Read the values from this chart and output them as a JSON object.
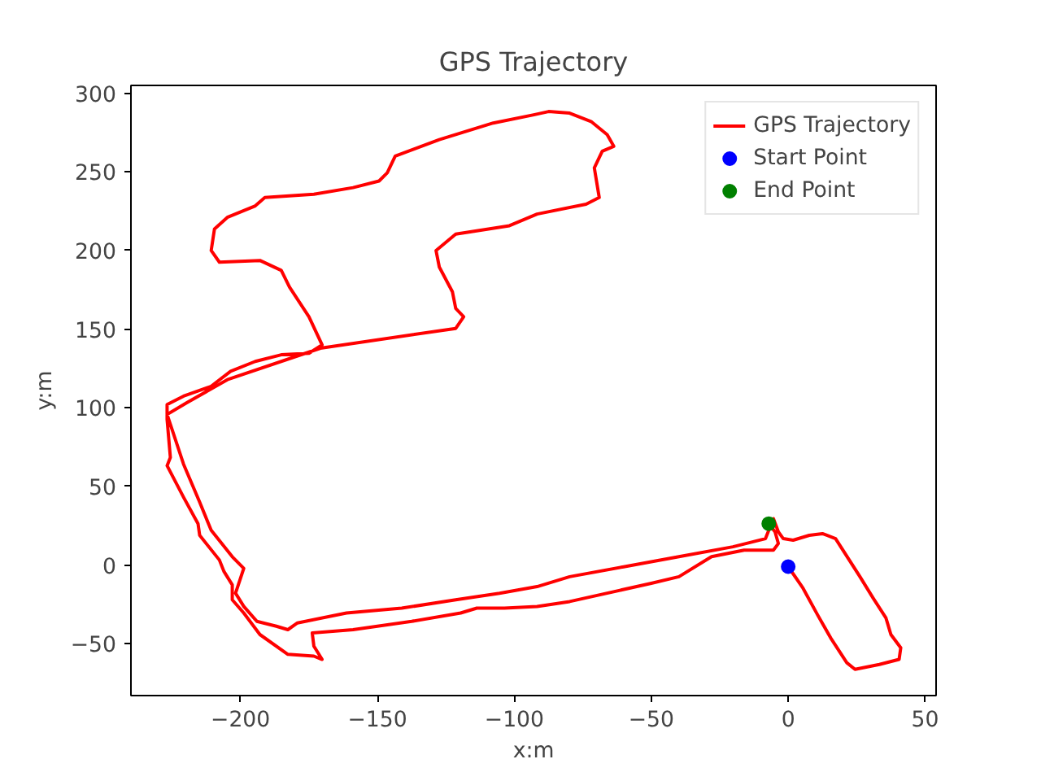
{
  "chart_data": {
    "type": "line",
    "title": "GPS Trajectory",
    "xlabel": "x:m",
    "ylabel": "y:m",
    "xlim": [
      -240,
      54
    ],
    "ylim": [
      -83,
      305
    ],
    "xticks": [
      -200,
      -150,
      -100,
      -50,
      0,
      50
    ],
    "yticks": [
      -50,
      0,
      50,
      100,
      150,
      200,
      250,
      300
    ],
    "grid": false,
    "legend": "top right",
    "series": [
      {
        "name": "GPS Trajectory",
        "color": "#ff0000",
        "marker": "none",
        "x": [
          0,
          5.4,
          10.7,
          15.5,
          21.4,
          24.4,
          33.3,
          40.5,
          41.1,
          37.5,
          35.7,
          31,
          26.2,
          17.3,
          12.5,
          7.7,
          1.8,
          -1.8,
          -3.6,
          -5.4,
          -8.3,
          -20.2,
          -39.9,
          -60.1,
          -79.8,
          -91.7,
          -105.4,
          -121.4,
          -141.1,
          -161.3,
          -179.2,
          -182.7,
          -186.9,
          -194.0,
          -198.8,
          -201.8,
          -198.8,
          -203.0,
          -210.7,
          -214.9,
          -220.8,
          -225.6,
          -226.8,
          -219.6,
          -204.8,
          -170.8,
          -121.4,
          -118.5,
          -121.4,
          -122.6,
          -127.4,
          -128.6,
          -121.4,
          -101.8,
          -91.7,
          -73.8,
          -69.0,
          -70.8,
          -67.9,
          -63.7,
          -66.1,
          -72.0,
          -79.8,
          -87.5,
          -92.9,
          -107.7,
          -127.4,
          -143.5,
          -146.4,
          -149.4,
          -158.9,
          -173.2,
          -191.1,
          -194.6,
          -204.8,
          -209.5,
          -210.7,
          -207.7,
          -192.9,
          -185.1,
          -182.1,
          -175.0,
          -170.2,
          -175.0,
          -185.1,
          -194.6,
          -203.6,
          -210.7,
          -220.8,
          -226.8,
          -226.8,
          -225.6,
          -226.8,
          -220.8,
          -215.5,
          -214.9,
          -207.7,
          -206.0,
          -203.0,
          -203.0,
          -198.8,
          -192.9,
          -182.7,
          -173.2,
          -170.2,
          -173.2,
          -173.8,
          -158.9,
          -137.5,
          -119.6,
          -113.7,
          -103.6,
          -91.7,
          -79.8,
          -50.0,
          -39.9,
          -28.0,
          -16.1,
          -5.4,
          -3.6,
          -4.8,
          -7.1
        ],
        "values": [
          -1,
          -14.7,
          -31.6,
          -46.3,
          -62.1,
          -66.3,
          -63.2,
          -60,
          -52.6,
          -44.2,
          -33.7,
          -21,
          -7.4,
          16.8,
          20,
          18.9,
          15.8,
          16.8,
          21.1,
          29.5,
          16.8,
          11.6,
          5.3,
          -1.1,
          -7.4,
          -13.7,
          -17.9,
          -22.1,
          -27.4,
          -30.5,
          -36.8,
          -41.1,
          -38.9,
          -35.8,
          -26.3,
          -17.9,
          -2.1,
          5.3,
          22.1,
          40,
          64.2,
          89.5,
          95.8,
          103.2,
          117.9,
          137.9,
          150.5,
          157.9,
          163.2,
          173.7,
          189.5,
          200,
          210.5,
          215.8,
          223.2,
          229.5,
          233.7,
          252.6,
          263.2,
          266.3,
          273.7,
          282.1,
          287.4,
          288.4,
          286.3,
          281.1,
          270.5,
          260,
          249.5,
          244.2,
          240,
          235.8,
          233.7,
          228.4,
          221.1,
          213.7,
          200,
          192.6,
          193.7,
          187.4,
          176.8,
          157.9,
          140,
          134.7,
          133.7,
          129.5,
          123.2,
          113.7,
          107.4,
          102.1,
          92.6,
          68.4,
          63.2,
          43.2,
          26.3,
          18.9,
          3.2,
          -4.2,
          -12.6,
          -22.1,
          -30.5,
          -44.2,
          -56.8,
          -57.9,
          -60,
          -51.6,
          -43.2,
          -41.1,
          -35.8,
          -30.5,
          -27.4,
          -27.4,
          -26.3,
          -23.2,
          -11.6,
          -7.4,
          5.3,
          9.5,
          9.5,
          13.7,
          21.1,
          26.3
        ]
      },
      {
        "name": "Start Point",
        "type": "scatter",
        "marker": "circle",
        "color": "#0000ff",
        "x": [
          0
        ],
        "values": [
          -1
        ]
      },
      {
        "name": "End Point",
        "type": "scatter",
        "marker": "circle",
        "color": "#008000",
        "x": [
          -7.1
        ],
        "values": [
          26.3
        ]
      }
    ]
  }
}
